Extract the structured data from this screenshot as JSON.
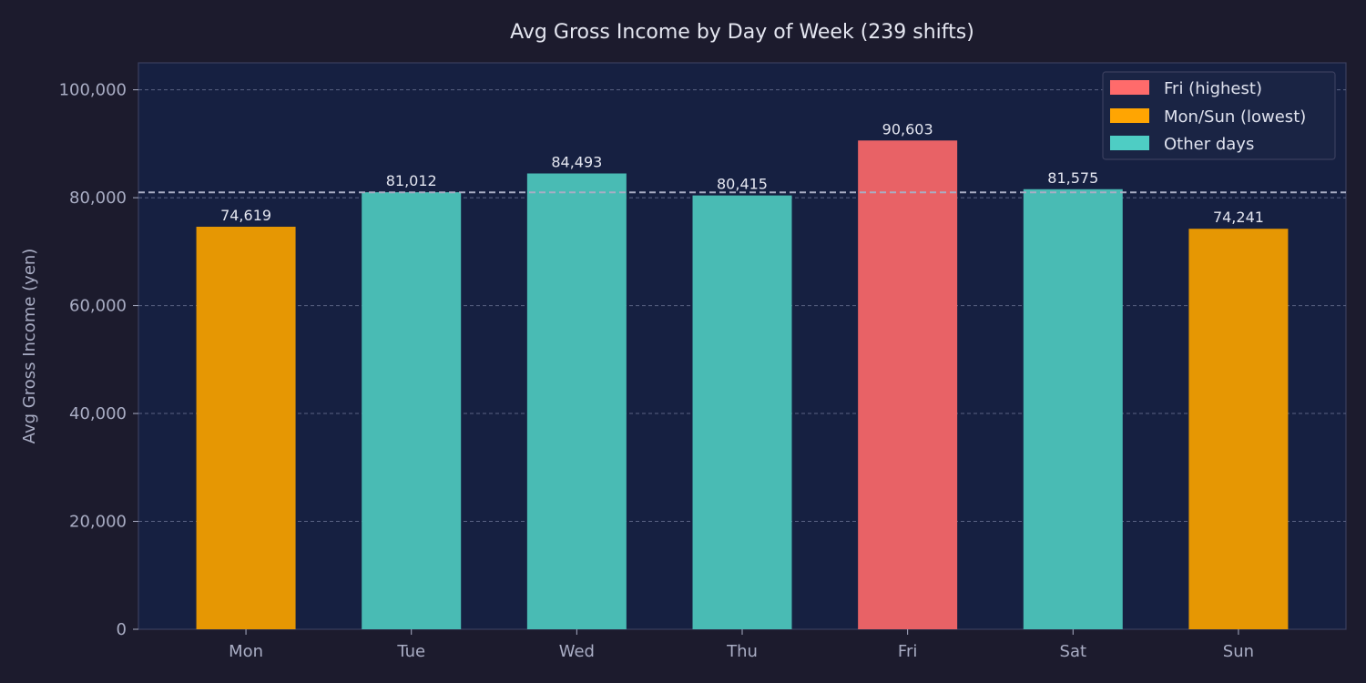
{
  "chart_data": {
    "type": "bar",
    "title": "Avg Gross Income by Day of Week (239 shifts)",
    "xlabel": "",
    "ylabel": "Avg Gross Income (yen)",
    "ylim": [
      0,
      105000
    ],
    "yticks": [
      0,
      20000,
      40000,
      60000,
      80000,
      100000
    ],
    "ytick_labels": [
      "0",
      "20,000",
      "40,000",
      "60,000",
      "80,000",
      "100,000"
    ],
    "grid": true,
    "categories": [
      "Mon",
      "Tue",
      "Wed",
      "Thu",
      "Fri",
      "Sat",
      "Sun"
    ],
    "values": [
      74619,
      81012,
      84493,
      80415,
      90603,
      81575,
      74241
    ],
    "value_labels": [
      "74,619",
      "81,012",
      "84,493",
      "80,415",
      "90,603",
      "81,575",
      "74,241"
    ],
    "groups": [
      "low",
      "other",
      "other",
      "other",
      "high",
      "other",
      "low"
    ],
    "reference_line": {
      "value": 80994,
      "style": "dashed"
    },
    "legend": {
      "placement": "top-right",
      "entries": [
        {
          "label": "Fri (highest)",
          "group": "high"
        },
        {
          "label": "Mon/Sun (lowest)",
          "group": "low"
        },
        {
          "label": "Other days",
          "group": "other"
        }
      ]
    },
    "colors": {
      "high": "#e86266",
      "low": "#e69703",
      "other": "#49bbb4",
      "legend_high": "#ff6b6b",
      "legend_low": "#ffa502",
      "legend_other": "#4ecdc4",
      "reference_line": "#a9adc4"
    }
  }
}
